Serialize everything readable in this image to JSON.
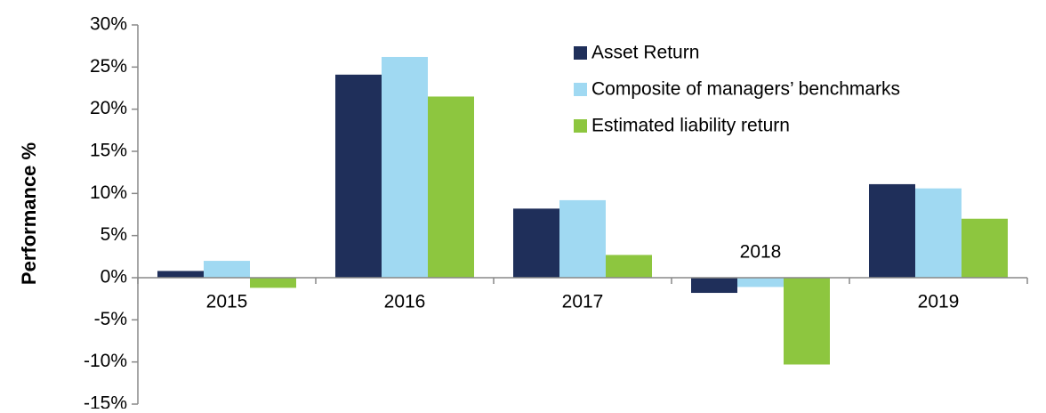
{
  "chart_data": {
    "type": "bar",
    "y_label": "Performance %",
    "categories": [
      "2015",
      "2016",
      "2017",
      "2018",
      "2019"
    ],
    "series": [
      {
        "name": "Asset Return",
        "color": "#1f2f5a",
        "values": [
          0.8,
          24.1,
          8.2,
          -1.8,
          11.1
        ]
      },
      {
        "name": "Composite of managers’ benchmarks",
        "color": "#a0d9f2",
        "values": [
          2.0,
          26.2,
          9.2,
          -1.1,
          10.6
        ]
      },
      {
        "name": "Estimated liability return",
        "color": "#8dc63f",
        "values": [
          -1.2,
          21.5,
          2.7,
          -10.3,
          7.0
        ]
      }
    ],
    "ylim": [
      -15,
      30
    ],
    "yticks": [
      {
        "value": -15,
        "label": "-15%"
      },
      {
        "value": -10,
        "label": "-10%"
      },
      {
        "value": -5,
        "label": "-5%"
      },
      {
        "value": 0,
        "label": "0%"
      },
      {
        "value": 5,
        "label": "5%"
      },
      {
        "value": 10,
        "label": "10%"
      },
      {
        "value": 15,
        "label": "15%"
      },
      {
        "value": 20,
        "label": "20%"
      },
      {
        "value": 25,
        "label": "25%"
      },
      {
        "value": 30,
        "label": "30%"
      }
    ],
    "legend": "top-right",
    "grid": false
  }
}
